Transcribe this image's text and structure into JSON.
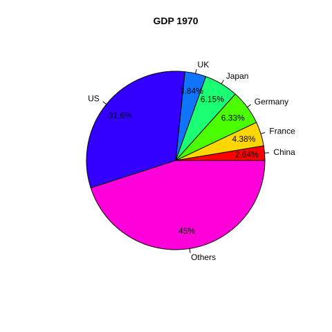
{
  "chart_data": {
    "type": "pie",
    "title": "GDP 1970",
    "direction": "counterclockwise",
    "start": "3 o'clock",
    "slices": [
      {
        "label": "China",
        "value": 2.64,
        "pct_label": "2.64%",
        "color": "#FF0000"
      },
      {
        "label": "France",
        "value": 4.38,
        "pct_label": "4.38%",
        "color": "#FFD700"
      },
      {
        "label": "Germany",
        "value": 6.33,
        "pct_label": "6.33%",
        "color": "#4CFF00"
      },
      {
        "label": "Japan",
        "value": 6.15,
        "pct_label": "6.15%",
        "color": "#1AFF73"
      },
      {
        "label": "UK",
        "value": 3.84,
        "pct_label": "3.84%",
        "color": "#0F75FF"
      },
      {
        "label": "US",
        "value": 31.6,
        "pct_label": "31.6%",
        "color": "#3300FF"
      },
      {
        "label": "Others",
        "value": 45,
        "pct_label": "45%",
        "color": "#FF00DB"
      }
    ]
  }
}
